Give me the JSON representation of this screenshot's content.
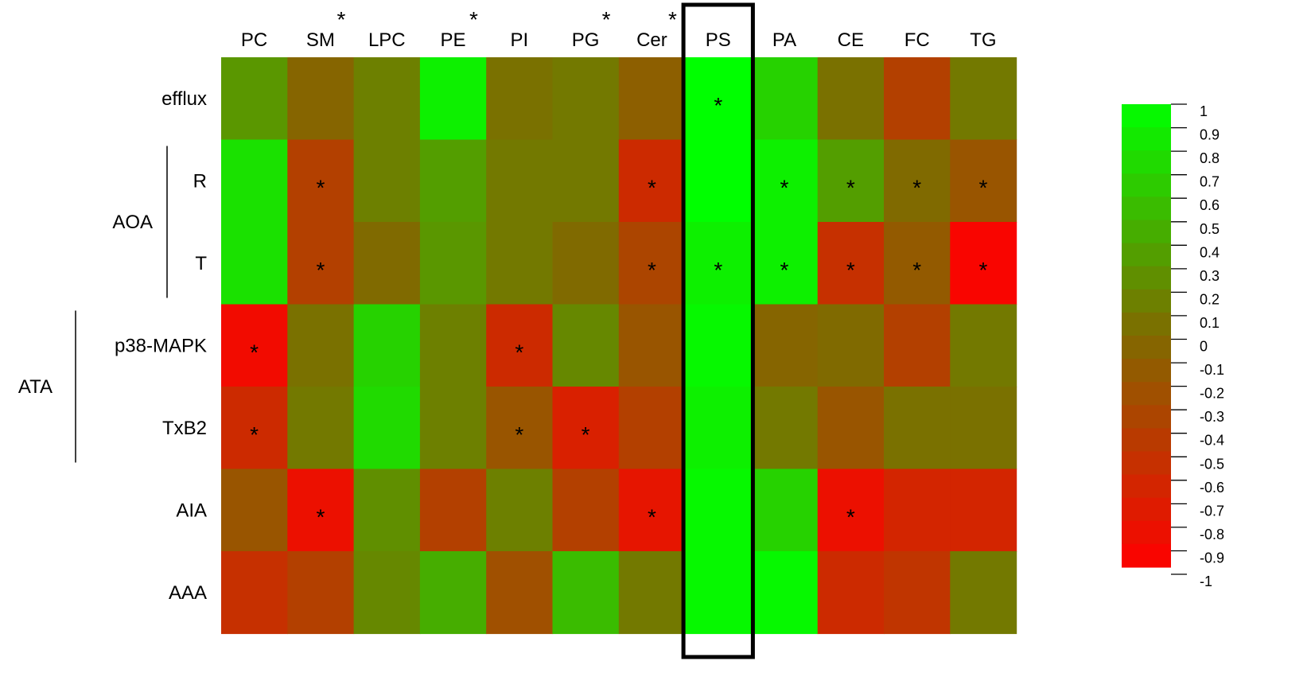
{
  "chart_data": {
    "type": "heatmap",
    "title": "",
    "xlabel": "",
    "ylabel": "",
    "columns": [
      "PC",
      "SM",
      "LPC",
      "PE",
      "PI",
      "PG",
      "Cer",
      "PS",
      "PA",
      "CE",
      "FC",
      "TG"
    ],
    "column_stars": [
      false,
      true,
      false,
      true,
      false,
      true,
      true,
      false,
      false,
      false,
      false,
      false
    ],
    "rows": [
      "efflux",
      "R",
      "T",
      "p38-MAPK",
      "TxB2",
      "AIA",
      "AAA"
    ],
    "row_groups": [
      {
        "label": "AOA",
        "rows": [
          1,
          2
        ]
      },
      {
        "label": "ATA",
        "rows": [
          3,
          4
        ]
      }
    ],
    "highlighted_column": "PS",
    "values": [
      [
        0.3,
        -0.05,
        0.15,
        0.9,
        0.05,
        0.1,
        -0.1,
        1.0,
        0.7,
        0.05,
        -0.4,
        0.1
      ],
      [
        0.8,
        -0.4,
        0.15,
        0.35,
        0.1,
        0.1,
        -0.6,
        1.0,
        0.9,
        0.35,
        0.0,
        -0.2
      ],
      [
        0.8,
        -0.4,
        0.0,
        0.3,
        0.1,
        0.0,
        -0.35,
        0.9,
        0.9,
        -0.55,
        -0.15,
        -0.95
      ],
      [
        -0.9,
        0.05,
        0.7,
        0.15,
        -0.6,
        0.2,
        -0.2,
        0.95,
        -0.05,
        0.0,
        -0.4,
        0.1
      ],
      [
        -0.6,
        0.1,
        0.75,
        0.15,
        -0.2,
        -0.7,
        -0.4,
        0.9,
        0.1,
        -0.2,
        0.05,
        0.05
      ],
      [
        -0.2,
        -0.85,
        0.25,
        -0.4,
        0.15,
        -0.4,
        -0.8,
        0.95,
        0.7,
        -0.85,
        -0.65,
        -0.65
      ],
      [
        -0.55,
        -0.4,
        0.2,
        0.45,
        -0.25,
        0.55,
        0.1,
        0.95,
        0.95,
        -0.6,
        -0.5,
        0.1
      ]
    ],
    "stars": [
      [
        false,
        false,
        false,
        false,
        false,
        false,
        false,
        true,
        false,
        false,
        false,
        false
      ],
      [
        false,
        true,
        false,
        false,
        false,
        false,
        true,
        false,
        true,
        true,
        true,
        true
      ],
      [
        false,
        true,
        false,
        false,
        false,
        false,
        true,
        true,
        true,
        true,
        true,
        true
      ],
      [
        true,
        false,
        false,
        false,
        true,
        false,
        false,
        false,
        false,
        false,
        false,
        false
      ],
      [
        true,
        false,
        false,
        false,
        true,
        true,
        false,
        false,
        false,
        false,
        false,
        false
      ],
      [
        false,
        true,
        false,
        false,
        false,
        false,
        true,
        false,
        false,
        true,
        false,
        false
      ],
      [
        false,
        false,
        false,
        false,
        false,
        false,
        false,
        false,
        false,
        false,
        false,
        false
      ]
    ],
    "star_symbol": "*",
    "color_scale": {
      "min": -1,
      "max": 1,
      "low_color": "#ff0000",
      "mid_color": "#806a00",
      "high_color": "#00ff00",
      "ticks": [
        "1",
        "0.9",
        "0.8",
        "0.7",
        "0.6",
        "0.5",
        "0.4",
        "0.3",
        "0.2",
        "0.1",
        "0",
        "-0.1",
        "-0.2",
        "-0.3",
        "-0.4",
        "-0.5",
        "-0.6",
        "-0.7",
        "-0.8",
        "-0.9",
        "-1"
      ]
    },
    "legend_position": "right"
  }
}
